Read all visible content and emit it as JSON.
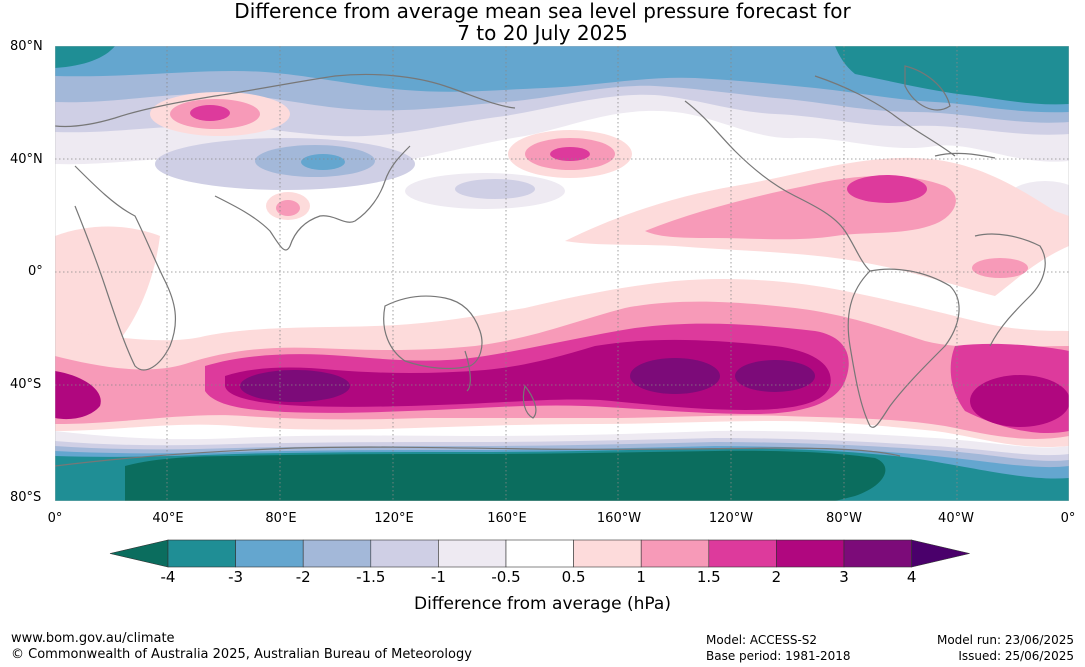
{
  "title_line1": "Difference from average mean sea level pressure forecast for",
  "title_line2": "7 to 20 July 2025",
  "lat_labels": [
    "80°N",
    "40°N",
    "0°",
    "40°S",
    "80°S"
  ],
  "lon_labels": [
    "0°",
    "40°E",
    "80°E",
    "120°E",
    "160°E",
    "160°W",
    "120°W",
    "80°W",
    "40°W",
    "0°"
  ],
  "colorbar": {
    "ticks": [
      "-4",
      "-3",
      "-2",
      "-1.5",
      "-1",
      "-0.5",
      "0.5",
      "1",
      "1.5",
      "2",
      "3",
      "4"
    ],
    "colors": [
      "#0b6d5e",
      "#1f8e95",
      "#64a6cf",
      "#a3b8d9",
      "#cfcfe5",
      "#eeeaf2",
      "#ffffff",
      "#fddbdb",
      "#f79ab8",
      "#dd3a9c",
      "#b0077f",
      "#7c0b79",
      "#4a006b"
    ],
    "label": "Difference from average (hPa)"
  },
  "footer": {
    "url": "www.bom.gov.au/climate",
    "copyright": "© Commonwealth of Australia 2025, Australian Bureau of Meteorology",
    "model": "Model: ACCESS-S2",
    "base_period": "Base period: 1981-2018",
    "model_run": "Model run: 23/06/2025",
    "issued": "Issued: 25/06/2025"
  }
}
